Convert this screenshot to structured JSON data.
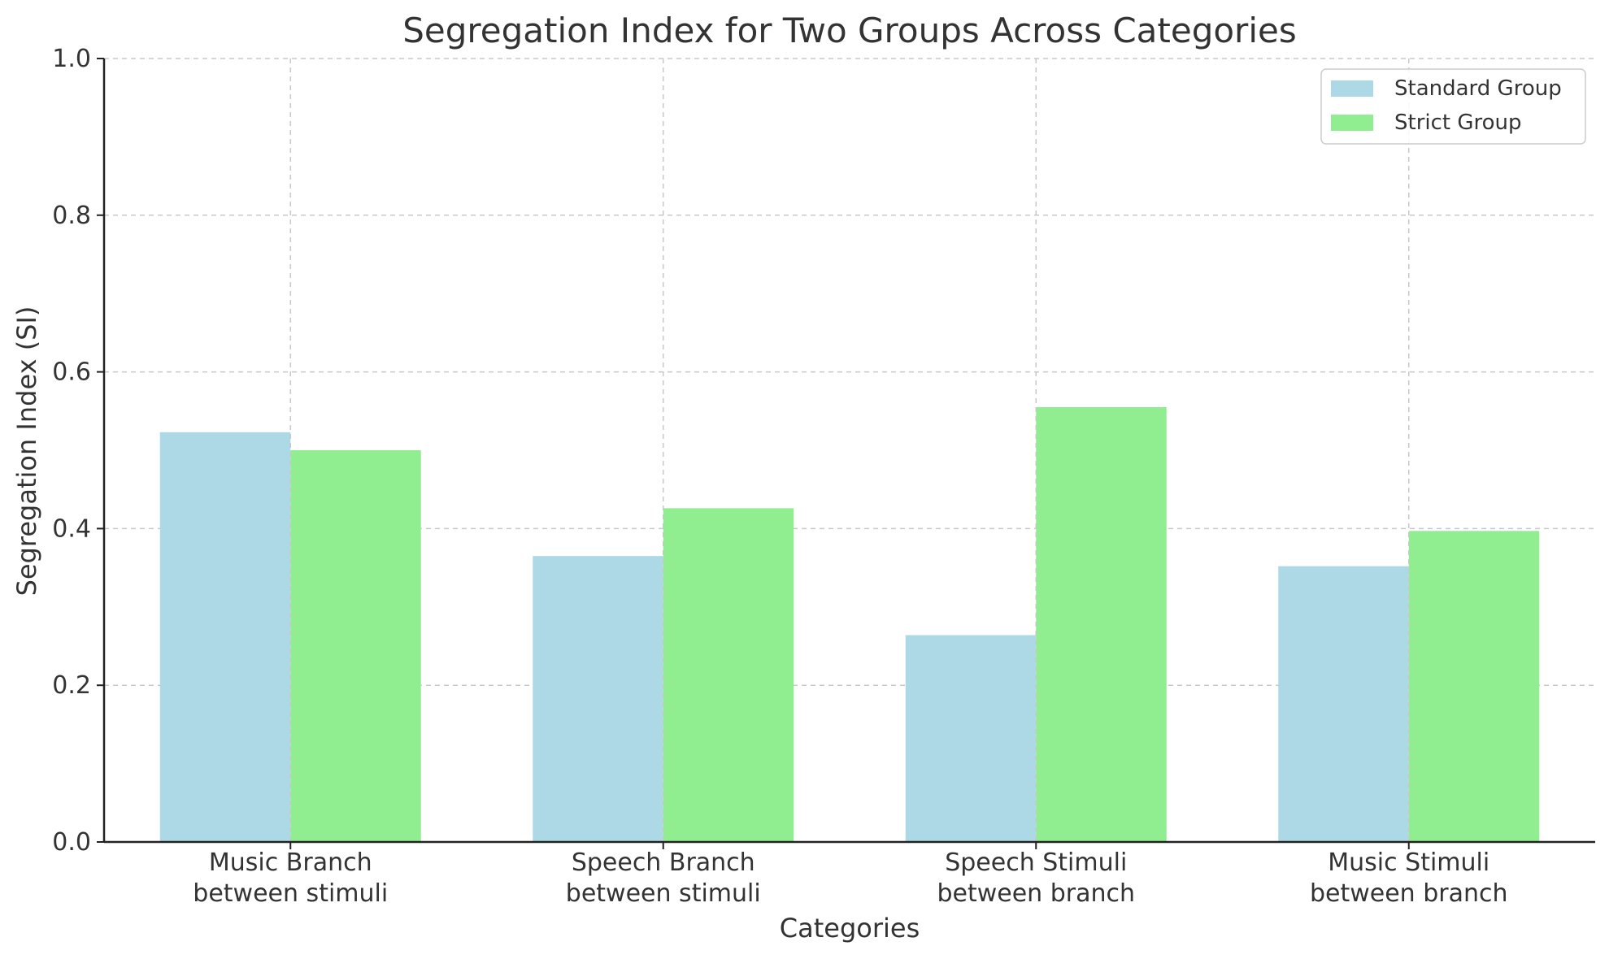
{
  "chart_data": {
    "type": "bar",
    "title": "Segregation Index for Two Groups Across Categories",
    "xlabel": "Categories",
    "ylabel": "Segregation Index (SI)",
    "ylim": [
      0,
      1.0
    ],
    "yticks": [
      "0.0",
      "0.2",
      "0.4",
      "0.6",
      "0.8",
      "1.0"
    ],
    "categories": [
      [
        "Music Branch",
        "between stimuli"
      ],
      [
        "Speech Branch",
        "between stimuli"
      ],
      [
        "Speech Stimuli",
        "between branch"
      ],
      [
        "Music Stimuli",
        "between branch"
      ]
    ],
    "series": [
      {
        "name": "Standard Group",
        "color": "#add8e6",
        "values": [
          0.523,
          0.365,
          0.264,
          0.352
        ]
      },
      {
        "name": "Strict Group",
        "color": "#90ee90",
        "values": [
          0.5,
          0.426,
          0.555,
          0.397
        ]
      }
    ],
    "grid": true,
    "legend_position": "top-right"
  }
}
